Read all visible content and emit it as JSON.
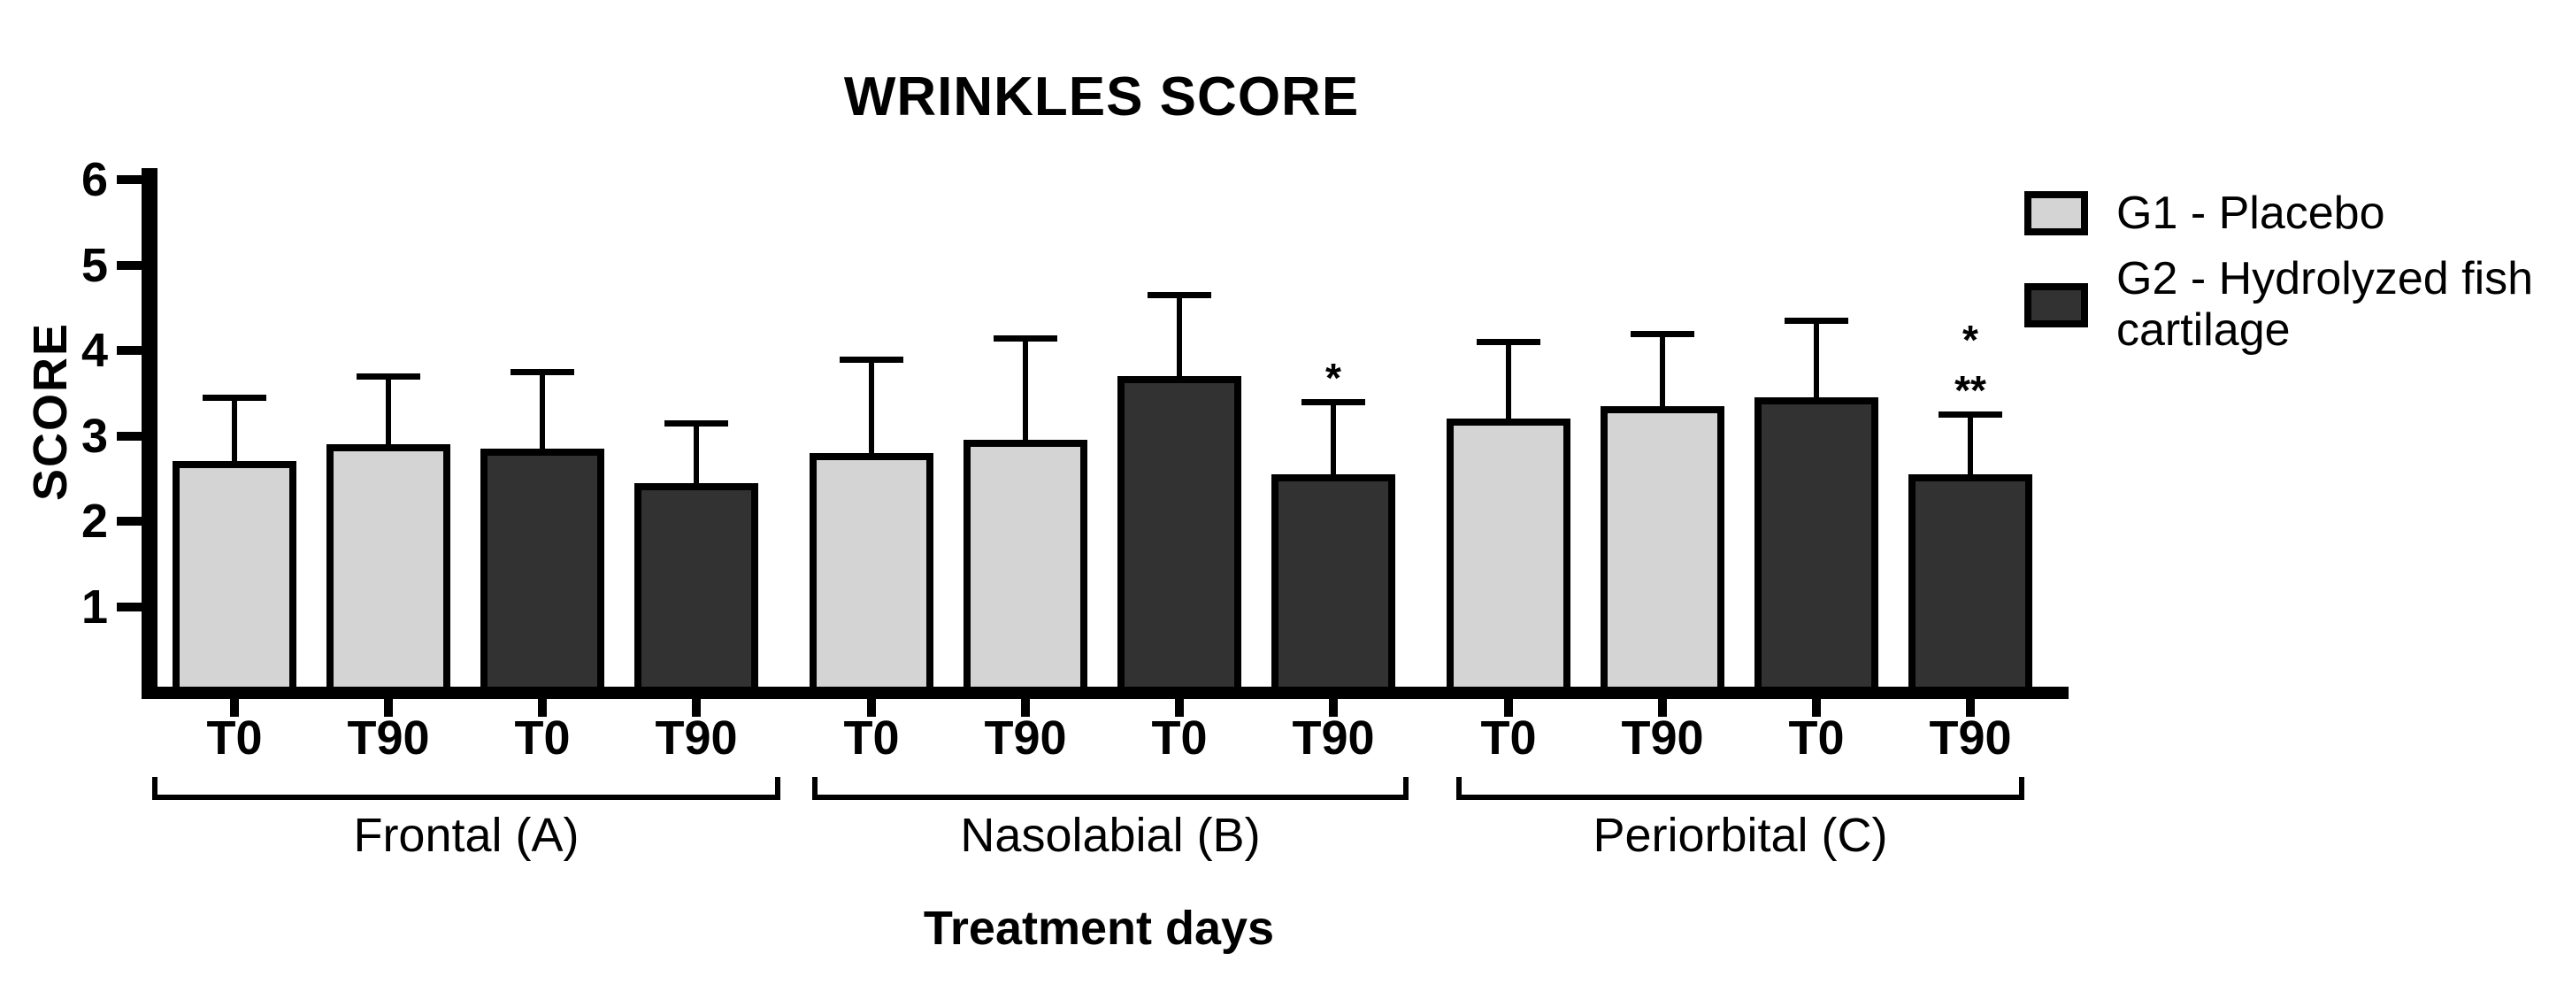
{
  "title": "WRINKLES SCORE",
  "axes": {
    "y_label": "SCORE",
    "x_label": "Treatment days",
    "y_ticks": [
      1,
      2,
      3,
      4,
      5,
      6
    ],
    "y_min": 0,
    "y_max": 6
  },
  "legend": {
    "entries": [
      {
        "key": "G1",
        "label": "G1 - Placebo",
        "color": "#d4d4d4"
      },
      {
        "key": "G2",
        "label": "G2 - Hydrolyzed fish cartilage",
        "color": "#323232"
      }
    ]
  },
  "chart_data": {
    "type": "bar",
    "title": "WRINKLES SCORE",
    "xlabel": "Treatment days",
    "ylabel": "SCORE",
    "ylim": [
      0,
      6
    ],
    "grid": false,
    "legend_position": "top-right",
    "series_colors": {
      "G1": "#d4d4d4",
      "G2": "#323232"
    },
    "groups": [
      {
        "label": "Frontal (A)",
        "bars": [
          {
            "x": "T0",
            "series": "G1",
            "value": 2.7,
            "error_top": 3.45,
            "annotations": []
          },
          {
            "x": "T90",
            "series": "G1",
            "value": 2.9,
            "error_top": 3.7,
            "annotations": []
          },
          {
            "x": "T0",
            "series": "G2",
            "value": 2.85,
            "error_top": 3.75,
            "annotations": []
          },
          {
            "x": "T90",
            "series": "G2",
            "value": 2.45,
            "error_top": 3.15,
            "annotations": []
          }
        ]
      },
      {
        "label": "Nasolabial (B)",
        "bars": [
          {
            "x": "T0",
            "series": "G1",
            "value": 2.8,
            "error_top": 3.9,
            "annotations": []
          },
          {
            "x": "T90",
            "series": "G1",
            "value": 2.95,
            "error_top": 4.15,
            "annotations": []
          },
          {
            "x": "T0",
            "series": "G2",
            "value": 3.7,
            "error_top": 4.65,
            "annotations": []
          },
          {
            "x": "T90",
            "series": "G2",
            "value": 2.55,
            "error_top": 3.4,
            "annotations": [
              "*"
            ]
          }
        ]
      },
      {
        "label": "Periorbital  (C)",
        "bars": [
          {
            "x": "T0",
            "series": "G1",
            "value": 3.2,
            "error_top": 4.1,
            "annotations": []
          },
          {
            "x": "T90",
            "series": "G1",
            "value": 3.35,
            "error_top": 4.2,
            "annotations": []
          },
          {
            "x": "T0",
            "series": "G2",
            "value": 3.45,
            "error_top": 4.35,
            "annotations": []
          },
          {
            "x": "T90",
            "series": "G2",
            "value": 2.55,
            "error_top": 3.25,
            "annotations": [
              "*",
              "**"
            ]
          }
        ]
      }
    ]
  }
}
